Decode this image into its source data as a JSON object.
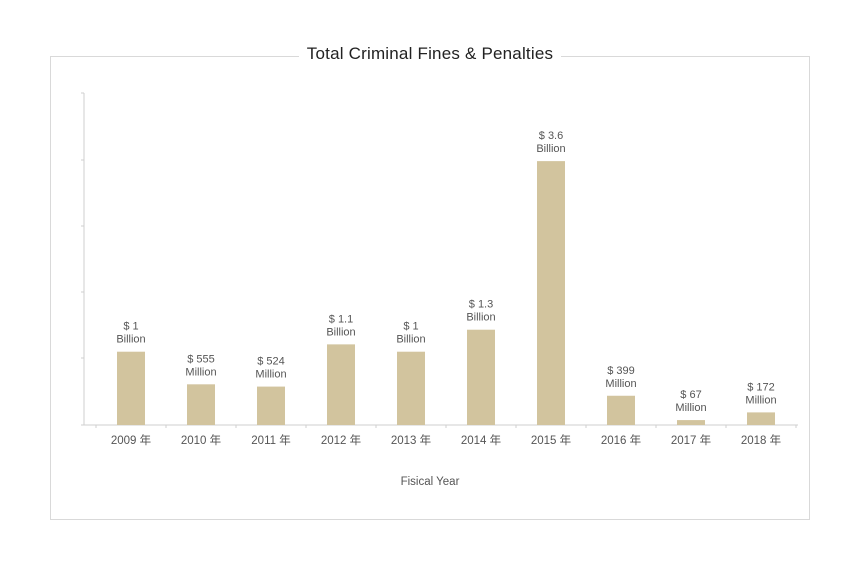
{
  "chart_data": {
    "type": "bar",
    "title": "Total Criminal Fines & Penalties",
    "xlabel": "Fisical Year",
    "ylabel": "",
    "categories": [
      "2009 年",
      "2010 年",
      "2011 年",
      "2012 年",
      "2013 年",
      "2014 年",
      "2015 年",
      "2016 年",
      "2017 年",
      "2018 年"
    ],
    "values": [
      1.0,
      0.555,
      0.524,
      1.1,
      1.0,
      1.3,
      3.6,
      0.399,
      0.067,
      0.172
    ],
    "value_unit": "billion USD",
    "data_labels": [
      [
        "$ 1",
        "Billion"
      ],
      [
        "$ 555",
        "Million"
      ],
      [
        "$ 524",
        "Million"
      ],
      [
        "$ 1.1",
        "Billion"
      ],
      [
        "$ 1",
        "Billion"
      ],
      [
        "$ 1.3",
        "Billion"
      ],
      [
        "$ 3.6",
        "Billion"
      ],
      [
        "$ 399",
        "Million"
      ],
      [
        "$ 67",
        "Million"
      ],
      [
        "$ 172",
        "Million"
      ]
    ],
    "bar_color": "#d2c49e",
    "grid": false,
    "legend": "none"
  }
}
